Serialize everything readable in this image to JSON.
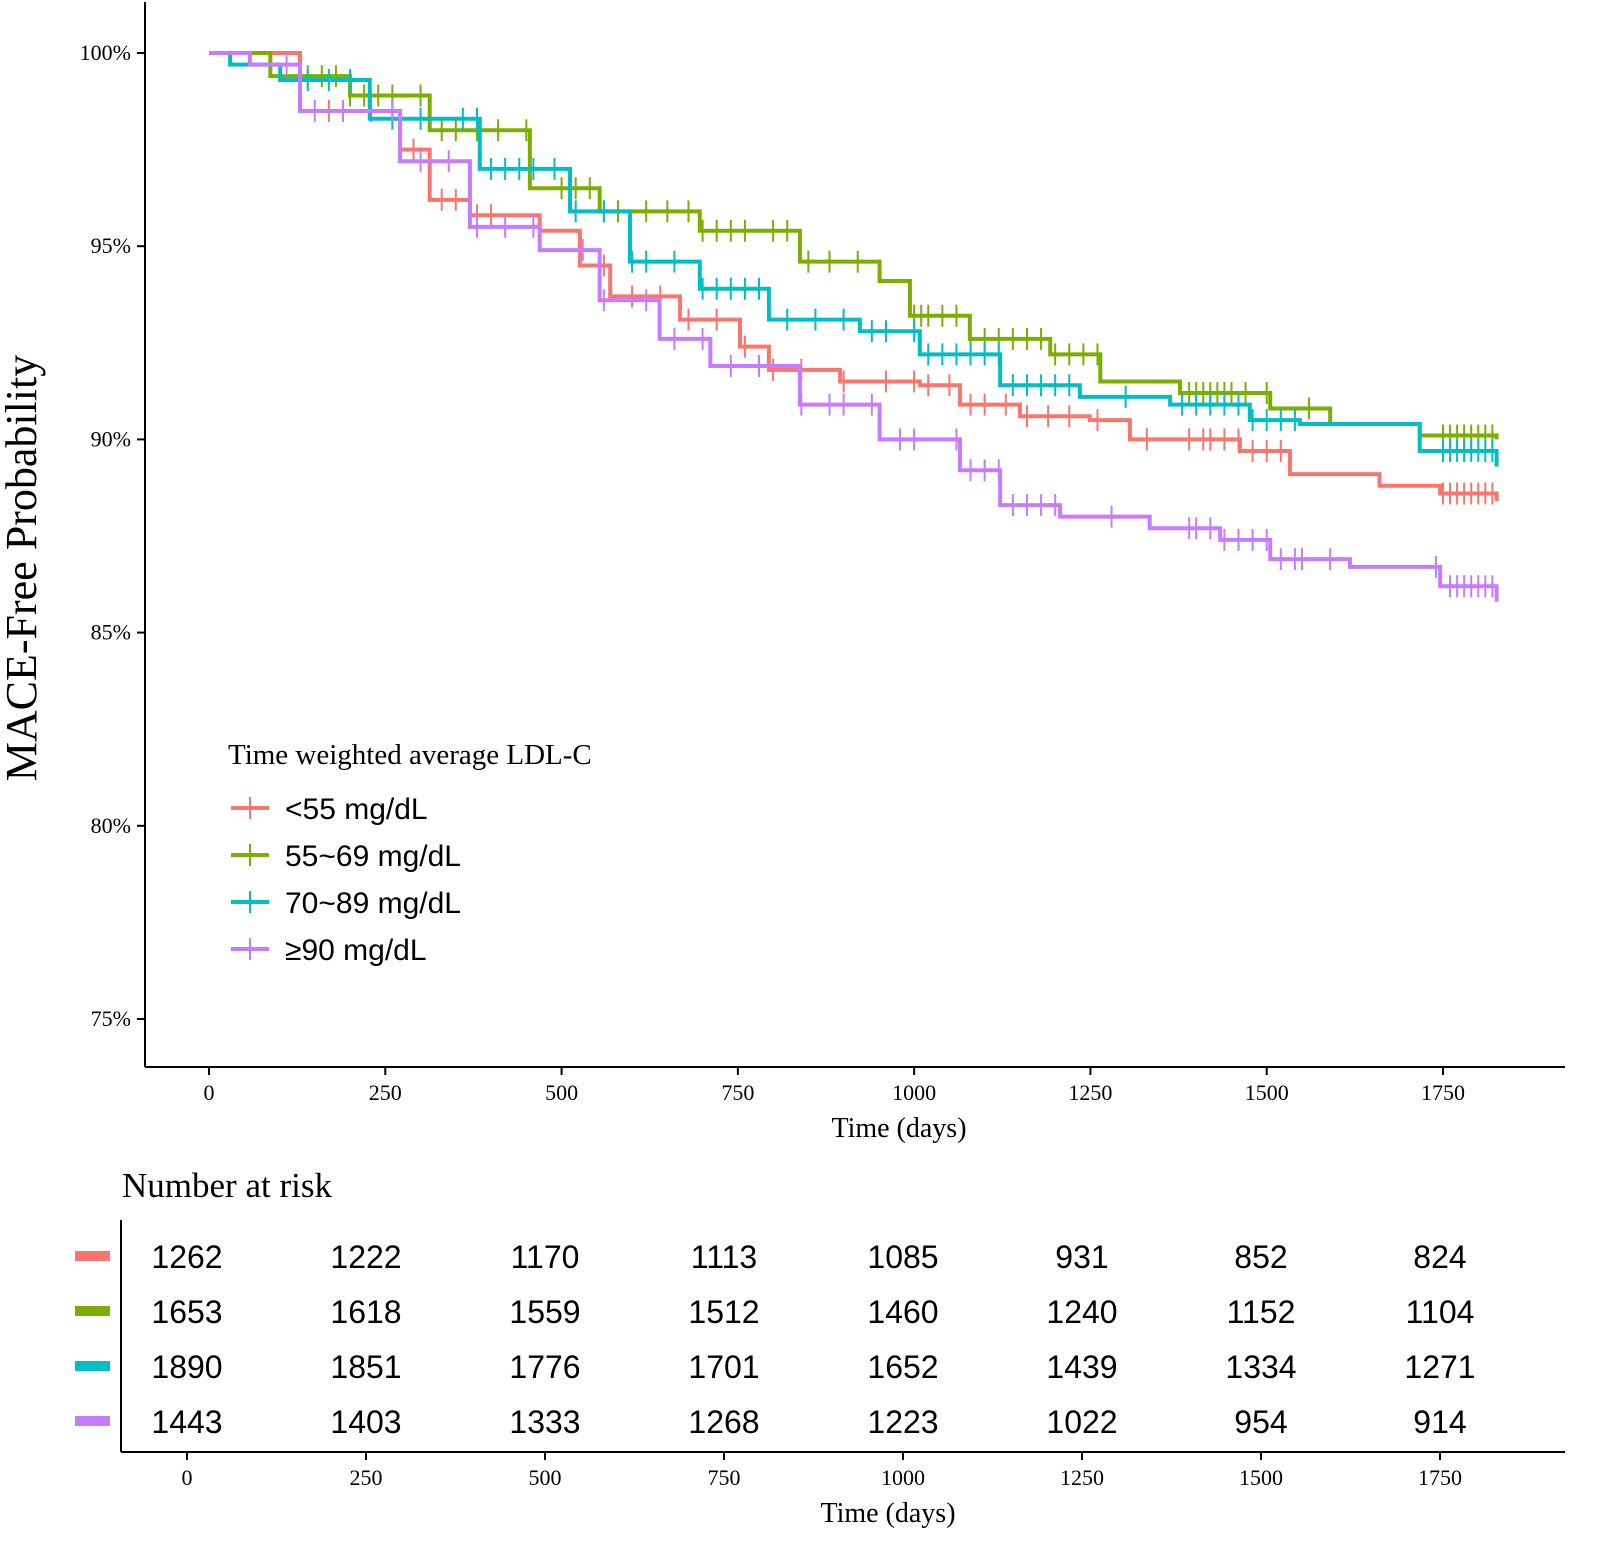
{
  "chart_data": {
    "type": "line",
    "subtype": "kaplan-meier step",
    "ylabel": "MACE-Free Probability",
    "xlabel": "Time (days)",
    "xlim": [
      0,
      1826
    ],
    "ylim": [
      74,
      101
    ],
    "x_ticks": [
      0,
      250,
      500,
      750,
      1000,
      1250,
      1500,
      1750
    ],
    "x_tick_labels": [
      "0",
      "250",
      "500",
      "750",
      "1000",
      "1250",
      "1500",
      "1750"
    ],
    "y_ticks": [
      75,
      80,
      85,
      90,
      95,
      100
    ],
    "y_tick_labels": [
      "75%",
      "80%",
      "85%",
      "90%",
      "95%",
      "100%"
    ],
    "legend": {
      "title": "Time weighted average LDL-C",
      "placement": "bottom-left inside"
    },
    "series": [
      {
        "name": "<55 mg/dL",
        "color": "#F8766D",
        "points": [
          [
            0,
            100
          ],
          [
            129,
            98.5
          ],
          [
            271,
            97.5
          ],
          [
            313,
            96.2
          ],
          [
            370,
            95.8
          ],
          [
            469,
            95.4
          ],
          [
            526,
            94.5
          ],
          [
            569,
            93.7
          ],
          [
            668,
            93.1
          ],
          [
            753,
            92.4
          ],
          [
            794,
            91.8
          ],
          [
            895,
            91.5
          ],
          [
            1008,
            91.4
          ],
          [
            1065,
            90.9
          ],
          [
            1150,
            90.6
          ],
          [
            1249,
            90.5
          ],
          [
            1306,
            90.0
          ],
          [
            1462,
            89.7
          ],
          [
            1533,
            89.1
          ],
          [
            1660,
            88.8
          ],
          [
            1746,
            88.6
          ],
          [
            1826,
            88.4
          ]
        ],
        "censor": [
          170,
          190,
          230,
          260,
          290,
          330,
          350,
          380,
          400,
          560,
          600,
          640,
          680,
          720,
          760,
          800,
          840,
          900,
          960,
          1000,
          1020,
          1050,
          1080,
          1100,
          1130,
          1160,
          1190,
          1220,
          1260,
          1330,
          1390,
          1410,
          1420,
          1440,
          1460,
          1480,
          1500,
          1520,
          1750,
          1760,
          1770,
          1780,
          1790,
          1800,
          1810,
          1820
        ]
      },
      {
        "name": "55~69 mg/dL",
        "color": "#7CAE00",
        "points": [
          [
            0,
            100
          ],
          [
            87,
            99.4
          ],
          [
            200,
            98.9
          ],
          [
            313,
            98.0
          ],
          [
            455,
            96.5
          ],
          [
            554,
            95.9
          ],
          [
            696,
            95.4
          ],
          [
            838,
            94.6
          ],
          [
            951,
            94.1
          ],
          [
            994,
            93.2
          ],
          [
            1079,
            92.6
          ],
          [
            1193,
            92.2
          ],
          [
            1264,
            91.5
          ],
          [
            1377,
            91.2
          ],
          [
            1505,
            90.8
          ],
          [
            1590,
            90.4
          ],
          [
            1717,
            90.1
          ],
          [
            1826,
            90.0
          ]
        ],
        "censor": [
          140,
          160,
          180,
          200,
          220,
          240,
          260,
          300,
          330,
          350,
          380,
          410,
          450,
          500,
          520,
          540,
          560,
          580,
          620,
          650,
          680,
          700,
          720,
          740,
          760,
          800,
          820,
          850,
          880,
          920,
          1000,
          1010,
          1020,
          1040,
          1060,
          1080,
          1100,
          1120,
          1140,
          1160,
          1180,
          1200,
          1220,
          1240,
          1260,
          1390,
          1400,
          1410,
          1420,
          1430,
          1440,
          1450,
          1470,
          1500,
          1560,
          1750,
          1760,
          1770,
          1780,
          1790,
          1800,
          1810,
          1820
        ]
      },
      {
        "name": "70~89 mg/dL",
        "color": "#00BFC4",
        "points": [
          [
            0,
            100
          ],
          [
            30,
            99.7
          ],
          [
            101,
            99.3
          ],
          [
            228,
            98.3
          ],
          [
            384,
            97.0
          ],
          [
            512,
            95.9
          ],
          [
            597,
            94.6
          ],
          [
            696,
            93.9
          ],
          [
            794,
            93.1
          ],
          [
            923,
            92.8
          ],
          [
            1008,
            92.2
          ],
          [
            1122,
            91.4
          ],
          [
            1235,
            91.1
          ],
          [
            1363,
            90.9
          ],
          [
            1476,
            90.5
          ],
          [
            1547,
            90.4
          ],
          [
            1717,
            89.7
          ],
          [
            1826,
            89.3
          ]
        ],
        "censor": [
          140,
          170,
          200,
          260,
          300,
          360,
          380,
          400,
          420,
          440,
          460,
          490,
          520,
          560,
          600,
          620,
          660,
          700,
          720,
          740,
          760,
          780,
          820,
          860,
          900,
          940,
          960,
          1000,
          1020,
          1040,
          1060,
          1080,
          1100,
          1120,
          1140,
          1160,
          1180,
          1200,
          1220,
          1300,
          1380,
          1400,
          1420,
          1440,
          1460,
          1480,
          1500,
          1520,
          1540,
          1750,
          1760,
          1770,
          1780,
          1790,
          1800,
          1810,
          1820
        ]
      },
      {
        "name": "≥90 mg/dL",
        "color": "#C77CFF",
        "points": [
          [
            0,
            100
          ],
          [
            58,
            99.7
          ],
          [
            129,
            98.5
          ],
          [
            271,
            97.2
          ],
          [
            370,
            95.5
          ],
          [
            469,
            94.9
          ],
          [
            554,
            93.6
          ],
          [
            639,
            92.6
          ],
          [
            711,
            91.9
          ],
          [
            838,
            90.9
          ],
          [
            951,
            90.0
          ],
          [
            1065,
            89.2
          ],
          [
            1122,
            88.3
          ],
          [
            1207,
            88.0
          ],
          [
            1334,
            87.7
          ],
          [
            1434,
            87.4
          ],
          [
            1505,
            86.9
          ],
          [
            1618,
            86.7
          ],
          [
            1746,
            86.2
          ],
          [
            1826,
            85.8
          ]
        ],
        "censor": [
          110,
          150,
          190,
          260,
          300,
          340,
          380,
          420,
          460,
          530,
          560,
          620,
          660,
          700,
          740,
          780,
          840,
          880,
          900,
          940,
          980,
          1000,
          1060,
          1080,
          1100,
          1120,
          1140,
          1160,
          1180,
          1200,
          1280,
          1390,
          1400,
          1420,
          1440,
          1460,
          1480,
          1500,
          1520,
          1540,
          1550,
          1590,
          1740,
          1760,
          1770,
          1780,
          1790,
          1800,
          1810,
          1820
        ]
      }
    ]
  },
  "risk_table": {
    "title": "Number at risk",
    "xlabel": "Time (days)",
    "x_tick_labels": [
      "0",
      "250",
      "500",
      "750",
      "1000",
      "1250",
      "1500",
      "1750"
    ],
    "rows": [
      {
        "color": "#F8766D",
        "values": [
          "1262",
          "1222",
          "1170",
          "1113",
          "1085",
          "931",
          "852",
          "824"
        ]
      },
      {
        "color": "#7CAE00",
        "values": [
          "1653",
          "1618",
          "1559",
          "1512",
          "1460",
          "1240",
          "1152",
          "1104"
        ]
      },
      {
        "color": "#00BFC4",
        "values": [
          "1890",
          "1851",
          "1776",
          "1701",
          "1652",
          "1439",
          "1334",
          "1271"
        ]
      },
      {
        "color": "#C77CFF",
        "values": [
          "1443",
          "1403",
          "1333",
          "1268",
          "1223",
          "1022",
          "954",
          "914"
        ]
      }
    ]
  }
}
